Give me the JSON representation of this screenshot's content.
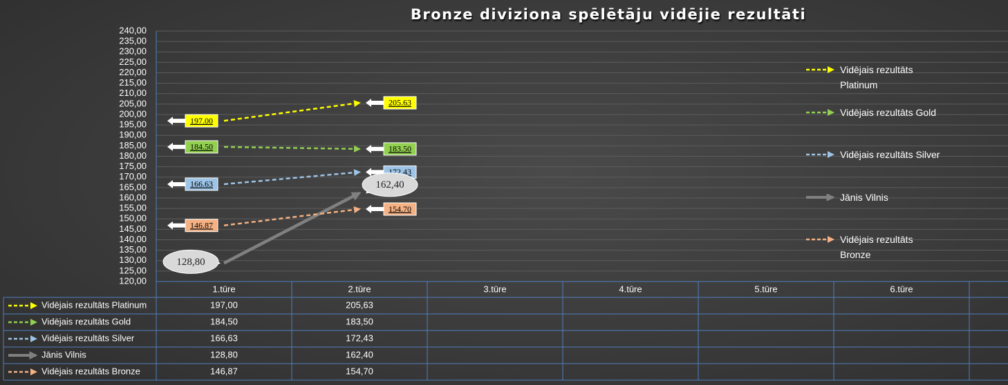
{
  "chart_data": {
    "type": "line",
    "title": "Bronze diviziona spēlētāju vidējie rezultāti",
    "categories": [
      "1.tūre",
      "2.tūre",
      "3.tūre",
      "4.tūre",
      "5.tūre",
      "6.tūre",
      null
    ],
    "series": [
      {
        "name": "Vidējais rezultāts Platinum",
        "color": "#ffff00",
        "line_style": "dashed",
        "values": [
          197.0,
          205.63,
          null,
          null,
          null,
          null,
          null
        ],
        "value_labels": [
          "197.00",
          "205.63",
          null,
          null,
          null,
          null,
          null
        ],
        "table_labels": [
          "197,00",
          "205,63",
          null,
          null,
          null,
          null,
          null
        ]
      },
      {
        "name": "Vidējais rezultāts Gold",
        "color": "#92d050",
        "line_style": "dashed",
        "values": [
          184.5,
          183.5,
          null,
          null,
          null,
          null,
          null
        ],
        "value_labels": [
          "184.50",
          "183.50",
          null,
          null,
          null,
          null,
          null
        ],
        "table_labels": [
          "184,50",
          "183,50",
          null,
          null,
          null,
          null,
          null
        ]
      },
      {
        "name": "Vidējais rezultāts Silver",
        "color": "#9dc3e6",
        "line_style": "dashed",
        "values": [
          166.63,
          172.43,
          null,
          null,
          null,
          null,
          null
        ],
        "value_labels": [
          "166.63",
          "172.43",
          null,
          null,
          null,
          null,
          null
        ],
        "table_labels": [
          "166,63",
          "172,43",
          null,
          null,
          null,
          null,
          null
        ]
      },
      {
        "name": "Jānis Vilnis",
        "color": "#808080",
        "line_style": "solid",
        "values": [
          128.8,
          162.4,
          null,
          null,
          null,
          null,
          null
        ],
        "value_labels": [
          "128,80",
          "162,40",
          null,
          null,
          null,
          null,
          null
        ],
        "table_labels": [
          "128,80",
          "162,40",
          null,
          null,
          null,
          null,
          null
        ]
      },
      {
        "name": "Vidējais rezultāts Bronze",
        "color": "#f4b183",
        "line_style": "dashed",
        "values": [
          146.87,
          154.7,
          null,
          null,
          null,
          null,
          null
        ],
        "value_labels": [
          "146.87",
          "154.70",
          null,
          null,
          null,
          null,
          null
        ],
        "table_labels": [
          "146,87",
          "154,70",
          null,
          null,
          null,
          null,
          null
        ]
      }
    ],
    "ylim": [
      120,
      240
    ],
    "yticks": [
      {
        "value": 120,
        "label": "120,00"
      },
      {
        "value": 125,
        "label": "125,00"
      },
      {
        "value": 130,
        "label": "130,00"
      },
      {
        "value": 135,
        "label": "135,00"
      },
      {
        "value": 140,
        "label": "140,00"
      },
      {
        "value": 145,
        "label": "145,00"
      },
      {
        "value": 150,
        "label": "150,00"
      },
      {
        "value": 155,
        "label": "155,00"
      },
      {
        "value": 160,
        "label": "160,00"
      },
      {
        "value": 165,
        "label": "165,00"
      },
      {
        "value": 170,
        "label": "170,00"
      },
      {
        "value": 175,
        "label": "175,00"
      },
      {
        "value": 180,
        "label": "180,00"
      },
      {
        "value": 185,
        "label": "185,00"
      },
      {
        "value": 190,
        "label": "190,00"
      },
      {
        "value": 195,
        "label": "195,00"
      },
      {
        "value": 200,
        "label": "200,00"
      },
      {
        "value": 205,
        "label": "205,00"
      },
      {
        "value": 210,
        "label": "210,00"
      },
      {
        "value": 215,
        "label": "215,00"
      },
      {
        "value": 220,
        "label": "220,00"
      },
      {
        "value": 225,
        "label": "225,00"
      },
      {
        "value": 230,
        "label": "230,00"
      },
      {
        "value": 235,
        "label": "235,00"
      },
      {
        "value": 240,
        "label": "240,00"
      }
    ],
    "grid": true,
    "legend": "right",
    "data_table": true
  }
}
